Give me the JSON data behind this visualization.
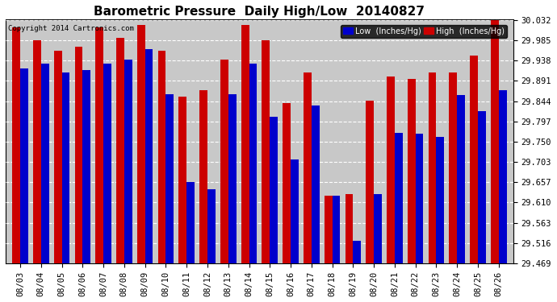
{
  "title": "Barometric Pressure  Daily High/Low  20140827",
  "copyright": "Copyright 2014 Cartronics.com",
  "dates": [
    "08/03",
    "08/04",
    "08/05",
    "08/06",
    "08/07",
    "08/08",
    "08/09",
    "08/10",
    "08/11",
    "08/12",
    "08/13",
    "08/14",
    "08/15",
    "08/16",
    "08/17",
    "08/18",
    "08/19",
    "08/20",
    "08/21",
    "08/22",
    "08/23",
    "08/24",
    "08/25",
    "08/26"
  ],
  "low_values": [
    29.92,
    29.93,
    29.91,
    29.915,
    29.93,
    29.94,
    29.965,
    29.86,
    29.657,
    29.64,
    29.86,
    29.93,
    29.808,
    29.71,
    29.833,
    29.625,
    29.522,
    29.63,
    29.77,
    29.768,
    29.762,
    29.858,
    29.82,
    29.87
  ],
  "high_values": [
    30.015,
    29.985,
    29.96,
    29.97,
    30.015,
    29.99,
    30.02,
    29.96,
    29.855,
    29.87,
    29.94,
    30.02,
    29.985,
    29.84,
    29.91,
    29.625,
    29.63,
    29.845,
    29.9,
    29.895,
    29.91,
    29.91,
    29.95,
    30.032
  ],
  "ylim_min": 29.469,
  "ylim_max": 30.032,
  "yticks": [
    29.469,
    29.516,
    29.563,
    29.61,
    29.657,
    29.703,
    29.75,
    29.797,
    29.844,
    29.891,
    29.938,
    29.985,
    30.032
  ],
  "low_color": "#0000cc",
  "high_color": "#cc0000",
  "bg_color": "#ffffff",
  "plot_bg_color": "#c8c8c8",
  "legend_low_label": "Low  (Inches/Hg)",
  "legend_high_label": "High  (Inches/Hg)",
  "title_fontsize": 11,
  "tick_fontsize": 7.5,
  "bar_width": 0.38
}
